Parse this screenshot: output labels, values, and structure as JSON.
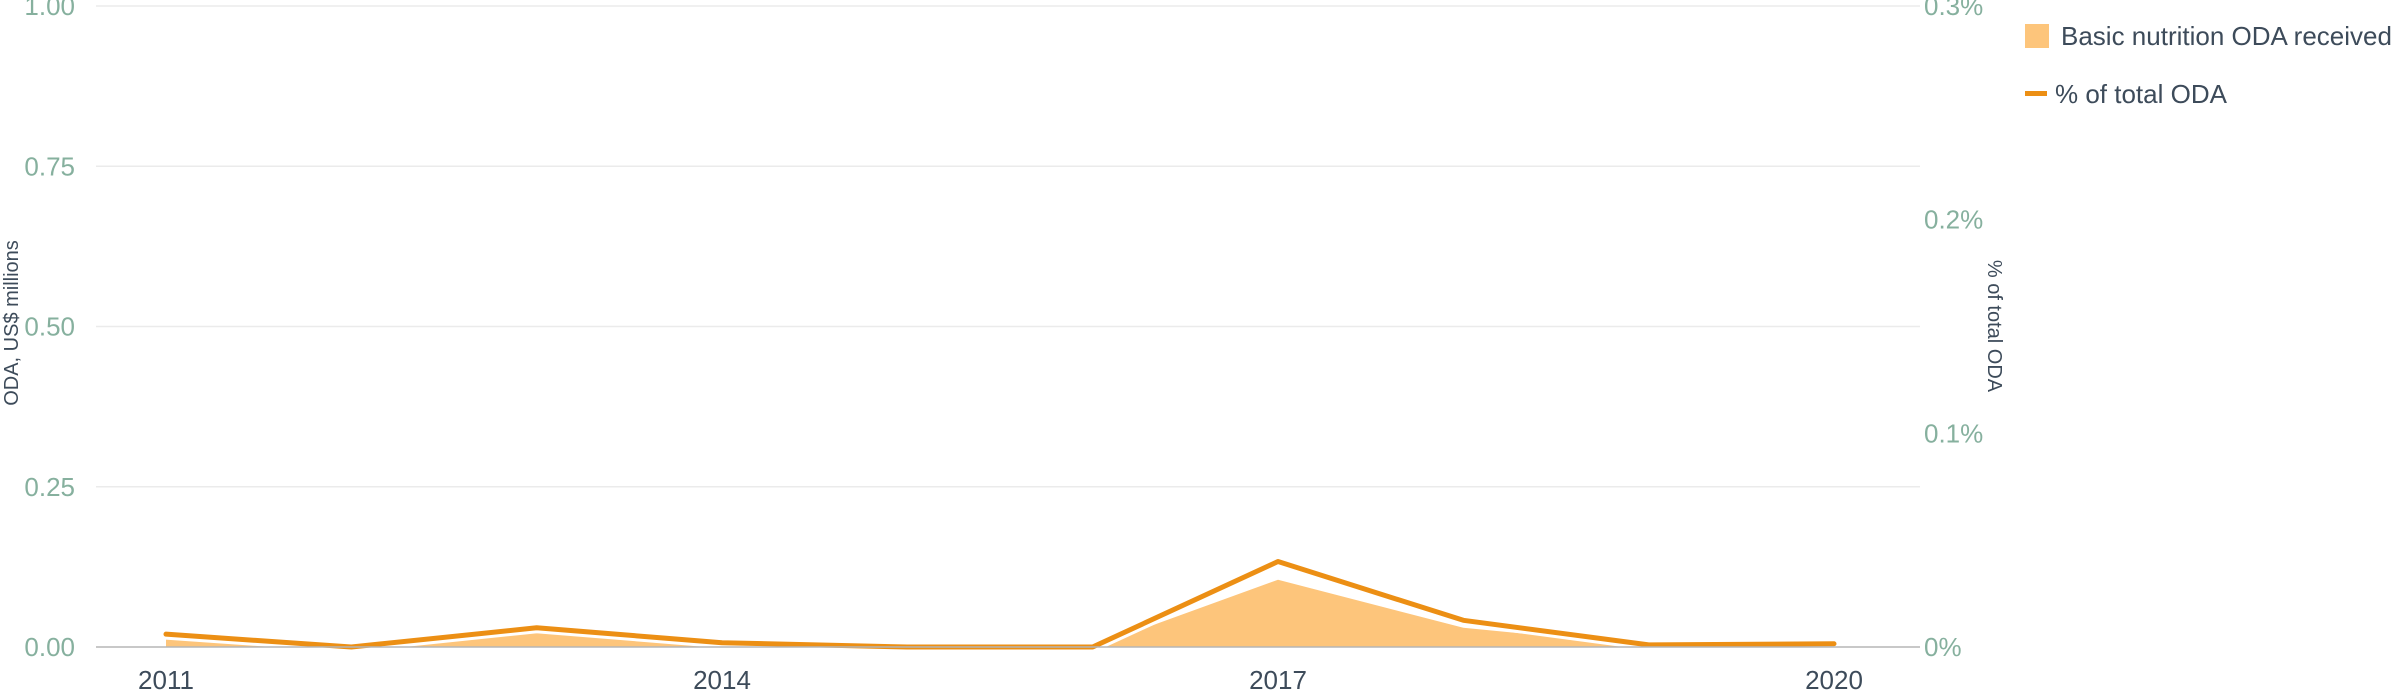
{
  "chart_data": {
    "type": "area",
    "x": [
      2011,
      2012,
      2013,
      2014,
      2015,
      2016,
      2017,
      2018,
      2019,
      2020
    ],
    "x_ticks": [
      "2011",
      "2014",
      "2017",
      "2020"
    ],
    "series": [
      {
        "name": "Basic nutrition ODA received",
        "type": "area",
        "axis": "left",
        "values": [
          0.012,
          0.0,
          0.022,
          0.003,
          0.0,
          0.0,
          0.105,
          0.03,
          0.002,
          0.004
        ],
        "color": "#fdc57b"
      },
      {
        "name": "% of total ODA",
        "type": "line",
        "axis": "right",
        "unit": "%",
        "values": [
          0.006,
          0.0,
          0.009,
          0.002,
          0.0,
          0.0,
          0.04,
          0.0125,
          0.001,
          0.0015
        ],
        "color": "#ec8f14"
      }
    ],
    "y_left": {
      "label": "ODA, US$ millions",
      "lim": [
        0,
        1
      ],
      "ticks": [
        "0.00",
        "0.25",
        "0.50",
        "0.75",
        "1.00"
      ],
      "tick_values": [
        0,
        0.25,
        0.5,
        0.75,
        1.0
      ]
    },
    "y_right": {
      "label": "% of total ODA",
      "lim": [
        0,
        0.3
      ],
      "ticks": [
        "0%",
        "0.1%",
        "0.2%",
        "0.3%"
      ],
      "tick_values": [
        0,
        0.1,
        0.2,
        0.3
      ]
    },
    "grid": true,
    "legend_position": "top-right"
  },
  "colors": {
    "area_fill": "#fdc57b",
    "line": "#ec8f14",
    "tick_label": "#86b09e",
    "axis_label": "#3d4b5a"
  }
}
